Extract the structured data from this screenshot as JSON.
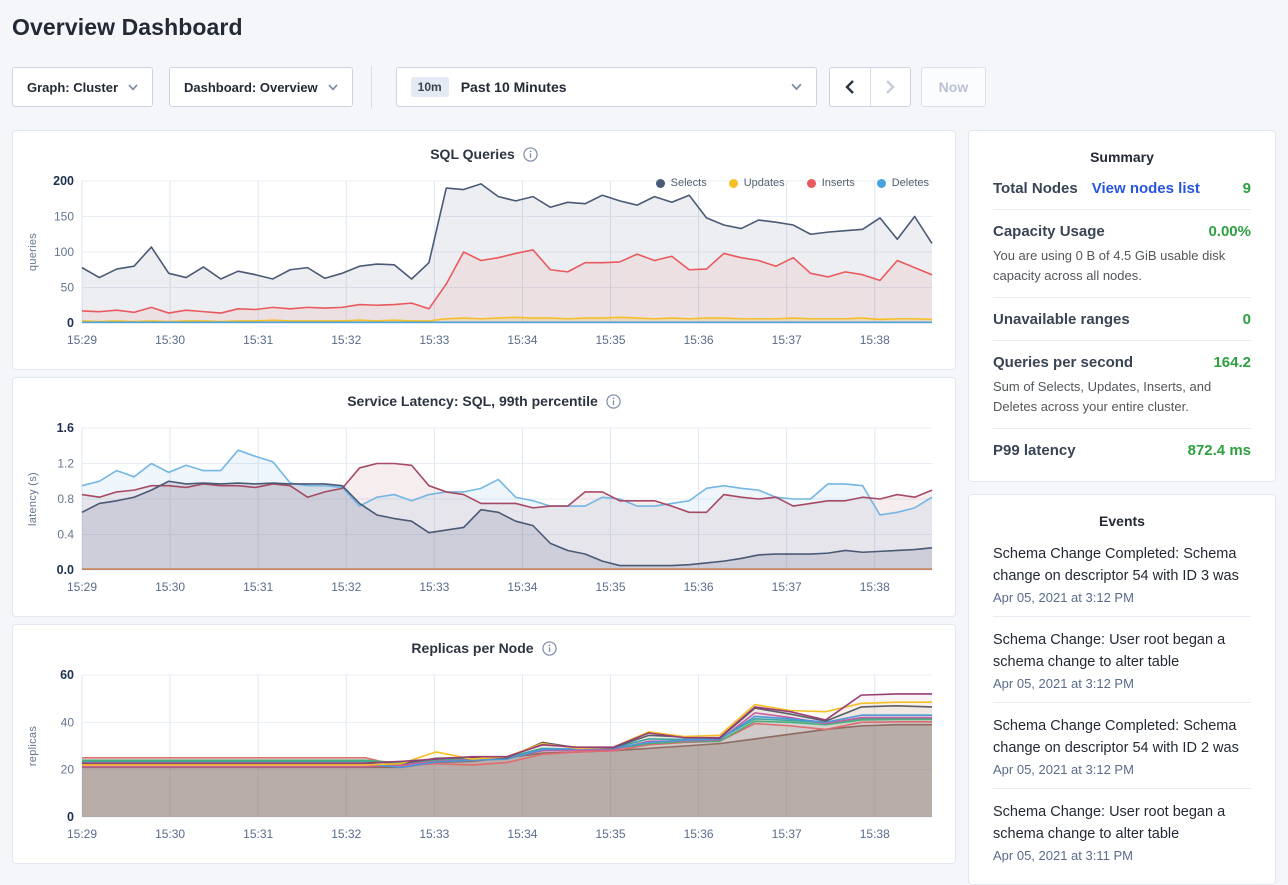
{
  "page": {
    "title": "Overview Dashboard"
  },
  "toolbar": {
    "graph_dropdown": "Graph: Cluster",
    "dashboard_dropdown": "Dashboard: Overview",
    "range_badge": "10m",
    "range_label": "Past 10 Minutes",
    "now_button": "Now"
  },
  "summary": {
    "title": "Summary",
    "rows": [
      {
        "label": "Total Nodes",
        "link": "View nodes list",
        "value": "9",
        "description": ""
      },
      {
        "label": "Capacity Usage",
        "link": "",
        "value": "0.00%",
        "description": "You are using 0 B of 4.5 GiB usable disk capacity across all nodes."
      },
      {
        "label": "Unavailable ranges",
        "link": "",
        "value": "0",
        "description": ""
      },
      {
        "label": "Queries per second",
        "link": "",
        "value": "164.2",
        "description": "Sum of Selects, Updates, Inserts, and Deletes across your entire cluster."
      },
      {
        "label": "P99 latency",
        "link": "",
        "value": "872.4 ms",
        "description": ""
      }
    ]
  },
  "events": {
    "title": "Events",
    "items": [
      {
        "text": "Schema Change Completed: Schema change on descriptor 54 with ID 3 was",
        "time": "Apr 05, 2021 at 3:12 PM"
      },
      {
        "text": "Schema Change: User root began a schema change to alter table",
        "time": "Apr 05, 2021 at 3:12 PM"
      },
      {
        "text": "Schema Change Completed: Schema change on descriptor 54 with ID 2 was",
        "time": "Apr 05, 2021 at 3:12 PM"
      },
      {
        "text": "Schema Change: User root began a schema change to alter table",
        "time": "Apr 05, 2021 at 3:11 PM"
      }
    ]
  },
  "chart_data": [
    {
      "type": "area",
      "title": "SQL Queries",
      "ylabel": "queries",
      "ylim": [
        0,
        200
      ],
      "yticks": [
        {
          "v": 0,
          "label": "0"
        },
        {
          "v": 50,
          "label": "50"
        },
        {
          "v": 100,
          "label": "100"
        },
        {
          "v": 150,
          "label": "150"
        },
        {
          "v": 200,
          "label": "200"
        }
      ],
      "xlabels": [
        "15:29",
        "15:30",
        "15:31",
        "15:32",
        "15:33",
        "15:34",
        "15:35",
        "15:36",
        "15:37",
        "15:38"
      ],
      "x_total": 9.65,
      "show_legend": true,
      "series": [
        {
          "name": "Selects",
          "color": "#4a5a75",
          "fill": "rgba(74,90,117,0.10)",
          "values": [
            78,
            64,
            76,
            80,
            107,
            70,
            64,
            79,
            62,
            73,
            68,
            62,
            75,
            78,
            63,
            70,
            80,
            83,
            82,
            62,
            85,
            190,
            188,
            196,
            178,
            172,
            178,
            163,
            170,
            168,
            180,
            172,
            166,
            178,
            170,
            180,
            148,
            138,
            133,
            145,
            142,
            138,
            125,
            128,
            130,
            132,
            148,
            118,
            150,
            112
          ]
        },
        {
          "name": "Updates",
          "color": "#f6bf26",
          "fill": "rgba(246,191,38,0.20)",
          "values": [
            3,
            2,
            3,
            2,
            3,
            2,
            3,
            3,
            2,
            3,
            3,
            4,
            3,
            3,
            3,
            3,
            4,
            3,
            4,
            3,
            3,
            6,
            7,
            6,
            7,
            8,
            7,
            7,
            6,
            7,
            7,
            8,
            7,
            6,
            7,
            6,
            7,
            7,
            6,
            6,
            6,
            7,
            6,
            6,
            6,
            7,
            5,
            6,
            6,
            5
          ]
        },
        {
          "name": "Inserts",
          "color": "#e85a5e",
          "fill": "rgba(232,90,94,0.09)",
          "values": [
            17,
            16,
            18,
            15,
            22,
            14,
            18,
            16,
            14,
            20,
            19,
            22,
            20,
            22,
            21,
            22,
            26,
            25,
            26,
            28,
            20,
            55,
            100,
            88,
            92,
            98,
            103,
            75,
            72,
            85,
            85,
            86,
            97,
            88,
            94,
            75,
            76,
            98,
            92,
            88,
            80,
            92,
            70,
            65,
            72,
            68,
            60,
            88,
            78,
            68
          ]
        },
        {
          "name": "Deletes",
          "color": "#47a3dc",
          "fill": "rgba(71,163,220,0.20)",
          "values": [
            1,
            1,
            1,
            1,
            1,
            1,
            1,
            1,
            1,
            1,
            1,
            1,
            1,
            1,
            1,
            1,
            1,
            1,
            1,
            1,
            1,
            1,
            1,
            1,
            1,
            1,
            1,
            1,
            1,
            1,
            1,
            1,
            1,
            1,
            1,
            1,
            1,
            1,
            1,
            1,
            1,
            1,
            1,
            1,
            1,
            1,
            1,
            1,
            1,
            1
          ]
        }
      ]
    },
    {
      "type": "area",
      "title": "Service Latency: SQL, 99th percentile",
      "ylabel": "latency (s)",
      "ylim": [
        0,
        1.6
      ],
      "yticks": [
        {
          "v": 0,
          "label": "0.0"
        },
        {
          "v": 0.4,
          "label": "0.4"
        },
        {
          "v": 0.8,
          "label": "0.8"
        },
        {
          "v": 1.2,
          "label": "1.2"
        },
        {
          "v": 1.6,
          "label": "1.6"
        }
      ],
      "xlabels": [
        "15:29",
        "15:30",
        "15:31",
        "15:32",
        "15:33",
        "15:34",
        "15:35",
        "15:36",
        "15:37",
        "15:38"
      ],
      "x_total": 9.65,
      "show_legend": false,
      "series": [
        {
          "name": "",
          "color": "#74b6e4",
          "fill": "rgba(116,182,228,0.12)",
          "values": [
            0.95,
            1.0,
            1.12,
            1.05,
            1.2,
            1.1,
            1.18,
            1.12,
            1.12,
            1.35,
            1.28,
            1.22,
            0.98,
            0.95,
            0.95,
            0.93,
            0.72,
            0.82,
            0.85,
            0.78,
            0.85,
            0.88,
            0.88,
            0.92,
            1.02,
            0.82,
            0.78,
            0.72,
            0.72,
            0.72,
            0.82,
            0.8,
            0.72,
            0.72,
            0.75,
            0.78,
            0.92,
            0.95,
            0.92,
            0.9,
            0.82,
            0.8,
            0.8,
            0.97,
            0.97,
            0.95,
            0.62,
            0.65,
            0.7,
            0.82
          ]
        },
        {
          "name": "",
          "color": "#a64a63",
          "fill": "rgba(166,74,99,0.10)",
          "values": [
            0.85,
            0.82,
            0.88,
            0.9,
            0.95,
            0.95,
            0.93,
            0.97,
            0.95,
            0.95,
            0.93,
            0.97,
            0.95,
            0.82,
            0.88,
            0.92,
            1.15,
            1.2,
            1.2,
            1.18,
            0.95,
            0.88,
            0.85,
            0.75,
            0.75,
            0.75,
            0.7,
            0.72,
            0.72,
            0.88,
            0.88,
            0.78,
            0.78,
            0.78,
            0.72,
            0.65,
            0.65,
            0.85,
            0.82,
            0.8,
            0.82,
            0.72,
            0.75,
            0.78,
            0.78,
            0.82,
            0.8,
            0.85,
            0.82,
            0.9
          ]
        },
        {
          "name": "",
          "color": "#4a5a75",
          "fill": "rgba(74,90,117,0.16)",
          "values": [
            0.65,
            0.75,
            0.78,
            0.82,
            0.9,
            1.0,
            0.97,
            0.98,
            0.97,
            0.98,
            0.97,
            0.98,
            0.97,
            0.97,
            0.97,
            0.95,
            0.75,
            0.62,
            0.58,
            0.55,
            0.42,
            0.45,
            0.48,
            0.68,
            0.65,
            0.55,
            0.5,
            0.3,
            0.22,
            0.18,
            0.1,
            0.05,
            0.05,
            0.05,
            0.05,
            0.06,
            0.08,
            0.1,
            0.13,
            0.17,
            0.18,
            0.18,
            0.18,
            0.19,
            0.22,
            0.2,
            0.21,
            0.22,
            0.23,
            0.25
          ]
        },
        {
          "name": "",
          "color": "#c77b4e",
          "fill": "none",
          "values": [
            0.01,
            0.01,
            0.01,
            0.01,
            0.01,
            0.01,
            0.01,
            0.01,
            0.01,
            0.01,
            0.01,
            0.01,
            0.01,
            0.01,
            0.01,
            0.01,
            0.01,
            0.01,
            0.01,
            0.01,
            0.01,
            0.01,
            0.01,
            0.01,
            0.01,
            0.01,
            0.01,
            0.01,
            0.01,
            0.01,
            0.01,
            0.01,
            0.01,
            0.01,
            0.01,
            0.01,
            0.01,
            0.01,
            0.01,
            0.01,
            0.01,
            0.01,
            0.01,
            0.01,
            0.01,
            0.01,
            0.01,
            0.01,
            0.01,
            0.01
          ]
        }
      ]
    },
    {
      "type": "area",
      "title": "Replicas per Node",
      "ylabel": "replicas",
      "ylim": [
        0,
        60
      ],
      "yticks": [
        {
          "v": 0,
          "label": "0"
        },
        {
          "v": 20,
          "label": "20"
        },
        {
          "v": 40,
          "label": "40"
        },
        {
          "v": 60,
          "label": "60"
        }
      ],
      "xlabels": [
        "15:29",
        "15:30",
        "15:31",
        "15:32",
        "15:33",
        "15:34",
        "15:35",
        "15:36",
        "15:37",
        "15:38"
      ],
      "x_total": 9.65,
      "show_legend": false,
      "series": [
        {
          "name": "",
          "color": "#8d6b60",
          "fill": "rgba(141,107,96,0.34)",
          "values": [
            21.0,
            21.0,
            21.0,
            21.0,
            21.0,
            21.0,
            21.0,
            21.0,
            21.0,
            21.0,
            23.0,
            23.5,
            25.0,
            27.0,
            27.5,
            28.0,
            29.0,
            30.0,
            31.0,
            33.0,
            35.0,
            37.0,
            38.5,
            39.0,
            39.0
          ]
        },
        {
          "name": "",
          "color": "#e06c6e",
          "fill": "rgba(224,108,110,0.06)",
          "values": [
            25.0,
            25.0,
            25.0,
            25.0,
            25.0,
            25.0,
            25.0,
            25.0,
            25.0,
            21.5,
            22.5,
            22.0,
            23.0,
            26.5,
            27.5,
            28.0,
            30.5,
            31.5,
            32.0,
            39.5,
            38.5,
            37.0,
            40.0,
            40.2,
            40.2
          ]
        },
        {
          "name": "",
          "color": "#3ba7a0",
          "fill": "rgba(59,167,160,0.06)",
          "values": [
            23.5,
            23.5,
            23.5,
            23.5,
            23.5,
            23.5,
            23.5,
            23.5,
            23.5,
            23.0,
            24.2,
            24.8,
            25.2,
            29.0,
            28.6,
            29.2,
            33.0,
            32.8,
            33.0,
            41.5,
            40.8,
            39.8,
            41.5,
            41.5,
            41.5
          ]
        },
        {
          "name": "",
          "color": "#4caf79",
          "fill": "rgba(76,175,121,0.06)",
          "values": [
            24.0,
            24.0,
            24.0,
            24.0,
            24.0,
            24.0,
            24.0,
            24.0,
            24.0,
            22.8,
            23.8,
            24.5,
            25.0,
            28.2,
            28.5,
            28.8,
            31.0,
            31.8,
            32.0,
            40.5,
            40.0,
            39.0,
            41.0,
            41.2,
            41.2
          ]
        },
        {
          "name": "",
          "color": "#c85ca4",
          "fill": "rgba(200,92,164,0.06)",
          "values": [
            21.3,
            21.3,
            21.3,
            21.3,
            21.3,
            21.3,
            21.3,
            21.3,
            21.3,
            22.0,
            23.5,
            24.2,
            24.8,
            28.0,
            28.2,
            28.5,
            32.0,
            32.2,
            32.5,
            44.0,
            42.0,
            39.5,
            42.0,
            42.0,
            42.0
          ]
        },
        {
          "name": "",
          "color": "#4d96d8",
          "fill": "rgba(77,150,216,0.06)",
          "values": [
            22.5,
            22.5,
            22.5,
            22.5,
            22.5,
            22.5,
            22.5,
            22.5,
            22.5,
            21.0,
            23.2,
            24.0,
            24.5,
            28.5,
            28.8,
            29.0,
            31.5,
            32.5,
            32.8,
            42.5,
            41.5,
            40.0,
            43.0,
            43.0,
            43.0
          ]
        },
        {
          "name": "",
          "color": "#595e68",
          "fill": "rgba(89,94,104,0.06)",
          "values": [
            22.2,
            22.2,
            22.2,
            22.2,
            22.2,
            22.2,
            22.2,
            22.2,
            22.2,
            22.5,
            24.8,
            25.2,
            25.0,
            31.5,
            29.2,
            29.2,
            34.5,
            33.8,
            33.2,
            46.0,
            43.5,
            40.5,
            46.5,
            47.0,
            46.5
          ]
        },
        {
          "name": "",
          "color": "#f6bf26",
          "fill": "rgba(246,191,38,0.06)",
          "values": [
            22.0,
            22.0,
            22.0,
            22.0,
            22.0,
            22.0,
            22.0,
            22.0,
            22.0,
            22.5,
            27.5,
            24.5,
            25.5,
            31.0,
            29.0,
            29.5,
            36.0,
            34.0,
            34.5,
            47.5,
            45.0,
            44.5,
            48.0,
            48.5,
            48.5
          ]
        },
        {
          "name": "",
          "color": "#963d77",
          "fill": "rgba(150,61,119,0.06)",
          "values": [
            22.8,
            22.8,
            22.8,
            22.8,
            22.8,
            22.8,
            22.8,
            22.8,
            22.8,
            23.5,
            24.5,
            25.5,
            25.5,
            30.5,
            29.5,
            29.5,
            35.5,
            33.5,
            33.5,
            46.5,
            44.5,
            41.0,
            51.5,
            52.0,
            52.0
          ]
        }
      ]
    }
  ]
}
